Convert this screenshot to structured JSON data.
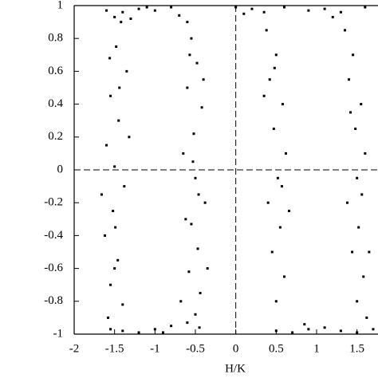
{
  "chart_data": {
    "type": "scatter",
    "x_label": "H/K",
    "color": "#000000",
    "zero_lines": true,
    "xlim": [
      -2,
      1.75
    ],
    "ylim": [
      -1,
      1
    ],
    "xticks": [
      -2,
      -1.5,
      -1,
      -0.5,
      0,
      0.5,
      1,
      1.5
    ],
    "yticks": [
      -1,
      -0.8,
      -0.6,
      -0.4,
      -0.2,
      0,
      0.2,
      0.4,
      0.6,
      0.8,
      1
    ],
    "x": [
      -1.42,
      -1.48,
      -1.35,
      -1.55,
      -1.45,
      -1.6,
      -1.5,
      -1.38,
      -1.52,
      -1.62,
      -1.46,
      -1.55,
      -1.4,
      -1.58,
      -1.5,
      -1.44,
      -1.66,
      -1.32,
      -1.56,
      -1.49,
      -0.55,
      -0.48,
      -0.6,
      -0.42,
      -0.52,
      -0.65,
      -0.5,
      -0.38,
      -0.55,
      -0.47,
      -0.58,
      -0.44,
      -0.5,
      -0.62,
      -0.4,
      -0.53,
      -0.35,
      -0.57,
      -0.46,
      -0.68,
      -1.6,
      -1.4,
      -1.2,
      -1.0,
      -0.8,
      -1.5,
      -1.3,
      -0.7,
      -1.1,
      -0.6,
      -1.4,
      -1.2,
      -1.0,
      -0.8,
      -0.6,
      -0.45,
      -0.9,
      -1.55,
      0.38,
      0.5,
      0.42,
      0.58,
      0.47,
      0.62,
      0.52,
      0.4,
      0.55,
      0.45,
      0.6,
      0.5,
      0.35,
      0.66,
      0.48,
      0.57,
      1.35,
      1.45,
      1.4,
      1.55,
      1.48,
      1.6,
      1.5,
      1.38,
      1.52,
      1.44,
      1.58,
      1.5,
      1.62,
      1.42,
      1.56,
      1.65,
      0.0,
      0.2,
      0.35,
      0.6,
      0.9,
      1.1,
      1.3,
      1.6,
      0.1,
      1.2,
      0.5,
      0.7,
      0.9,
      1.1,
      1.3,
      1.5,
      0.85,
      1.7
    ],
    "y": [
      0.9,
      0.75,
      0.6,
      0.45,
      0.3,
      0.15,
      0.02,
      -0.1,
      -0.25,
      -0.4,
      -0.55,
      -0.7,
      -0.82,
      -0.9,
      -0.6,
      0.5,
      -0.15,
      0.2,
      0.68,
      -0.35,
      0.8,
      0.65,
      0.5,
      0.38,
      0.22,
      0.1,
      -0.05,
      -0.2,
      -0.33,
      -0.48,
      -0.62,
      -0.75,
      -0.88,
      -0.3,
      0.55,
      0.05,
      -0.6,
      0.7,
      -0.15,
      -0.8,
      0.97,
      0.96,
      0.98,
      0.97,
      0.99,
      0.93,
      0.92,
      0.94,
      0.99,
      0.9,
      -0.98,
      -0.99,
      -0.97,
      -0.95,
      -0.93,
      -0.96,
      -0.99,
      -0.97,
      0.85,
      0.7,
      0.55,
      0.4,
      0.25,
      0.1,
      -0.05,
      -0.2,
      -0.35,
      -0.5,
      -0.65,
      -0.8,
      0.45,
      -0.25,
      0.62,
      -0.1,
      0.85,
      0.7,
      0.55,
      0.4,
      0.25,
      0.1,
      -0.05,
      -0.2,
      -0.35,
      -0.5,
      -0.65,
      -0.8,
      -0.9,
      0.35,
      -0.15,
      -0.5,
      0.99,
      0.98,
      0.96,
      0.99,
      0.97,
      0.98,
      0.96,
      0.99,
      0.95,
      0.93,
      -0.98,
      -0.99,
      -0.97,
      -0.96,
      -0.98,
      -0.99,
      -0.94,
      -0.97
    ]
  }
}
